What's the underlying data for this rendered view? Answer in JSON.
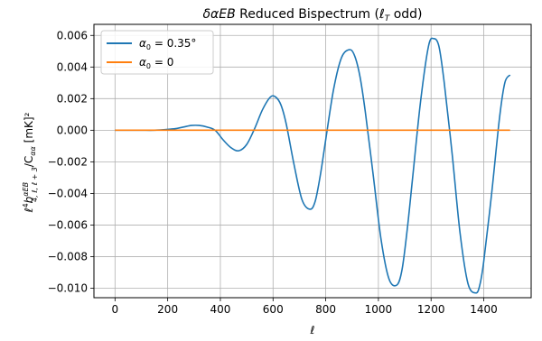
{
  "chart_data": {
    "type": "line",
    "title": "δα EB Reduced Bispectrum (ℓ_T odd)",
    "xlabel": "ℓ",
    "ylabel": "ℓ⁴ b^{αEB}_{4,ℓ,ℓ+3} / C_αα   [mK]²",
    "ylabel_parts": {
      "prefix": "ℓ",
      "sup4": "4",
      "b": "b",
      "sup": "αEB",
      "sub": "4, ℓ, ℓ + 3",
      "slash": "/C",
      "sub2": "αα",
      "unit": "[mK]²"
    },
    "title_parts": {
      "a": "δα",
      "b": "EB",
      "c": " Reduced Bispectrum (",
      "d": "ℓ",
      "e": "T",
      "f": " odd)"
    },
    "xlim": [
      -80,
      1580
    ],
    "ylim": [
      -0.0106,
      0.0067
    ],
    "xticks": [
      0,
      200,
      400,
      600,
      800,
      1000,
      1200,
      1400
    ],
    "xtick_labels": [
      "0",
      "200",
      "400",
      "600",
      "800",
      "1000",
      "1200",
      "1400"
    ],
    "yticks": [
      -0.01,
      -0.008,
      -0.006,
      -0.004,
      -0.002,
      0.0,
      0.002,
      0.004,
      0.006
    ],
    "ytick_labels": [
      "−0.010",
      "−0.008",
      "−0.006",
      "−0.004",
      "−0.002",
      "0.000",
      "0.002",
      "0.004",
      "0.006"
    ],
    "grid": true,
    "legend_position": "top-left",
    "series": [
      {
        "name": "α₀ = 0.35°",
        "legend_parts": {
          "sym": "α",
          "sub": "0",
          "rest": " = 0.35°"
        },
        "color": "#1f77b4",
        "x": [
          0,
          50,
          100,
          150,
          200,
          230,
          260,
          290,
          320,
          350,
          380,
          410,
          440,
          470,
          500,
          530,
          560,
          590,
          610,
          630,
          650,
          680,
          710,
          740,
          760,
          780,
          800,
          830,
          860,
          890,
          910,
          930,
          950,
          980,
          1010,
          1040,
          1070,
          1090,
          1110,
          1130,
          1160,
          1190,
          1210,
          1230,
          1250,
          1280,
          1310,
          1340,
          1370,
          1385,
          1400,
          1430,
          1460,
          1480,
          1500
        ],
        "y": [
          0,
          0,
          0,
          0,
          5e-05,
          0.0001,
          0.0002,
          0.0003,
          0.0003,
          0.0002,
          0,
          -0.0006,
          -0.0011,
          -0.0013,
          -0.0009,
          0.0001,
          0.0013,
          0.0021,
          0.0021,
          0.0016,
          0.0004,
          -0.0022,
          -0.0044,
          -0.005,
          -0.0045,
          -0.0028,
          -0.0006,
          0.0026,
          0.0046,
          0.0051,
          0.0047,
          0.0034,
          0.0012,
          -0.0028,
          -0.0069,
          -0.0094,
          -0.0098,
          -0.0088,
          -0.0062,
          -0.003,
          0.0018,
          0.0053,
          0.0058,
          0.0053,
          0.003,
          -0.0015,
          -0.0065,
          -0.0097,
          -0.0103,
          -0.0098,
          -0.0083,
          -0.004,
          0.0008,
          0.003,
          0.0035
        ]
      },
      {
        "name": "α₀ = 0",
        "legend_parts": {
          "sym": "α",
          "sub": "0",
          "rest": " = 0"
        },
        "color": "#ff7f0e",
        "x": [
          0,
          1500
        ],
        "y": [
          0,
          0
        ]
      }
    ]
  }
}
